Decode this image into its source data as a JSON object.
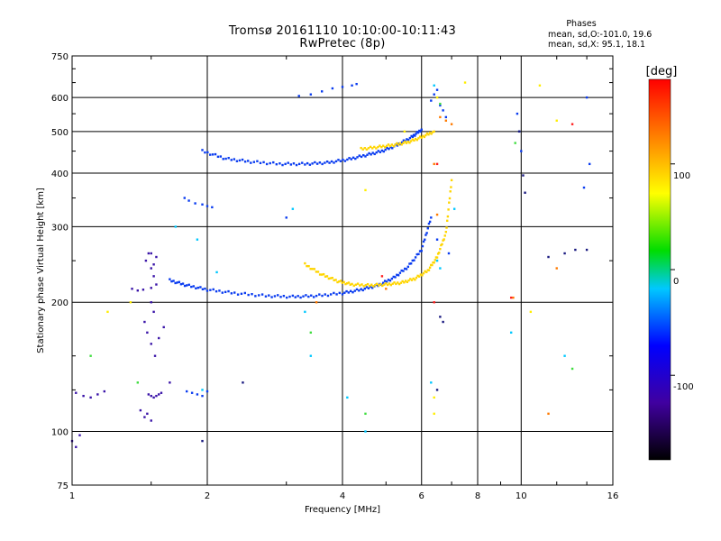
{
  "header": {
    "title_line1": "Tromsø 20161110 10:10:00-10:11:43",
    "title_line2": "RwPretec (8p)"
  },
  "stats": {
    "title": "Phases",
    "line_o": "mean, sd,O:-101.0, 19.6",
    "line_x": "mean, sd,X:  95.1, 18.1"
  },
  "chart_data": {
    "type": "scatter",
    "xlabel": "Frequency [MHz]",
    "ylabel": "Stationary phase Virtual Height [km]",
    "xscale": "log",
    "yscale": "log",
    "xlim": [
      1,
      16
    ],
    "ylim": [
      75,
      750
    ],
    "xticks": [
      1,
      2,
      4,
      6,
      8,
      10,
      16
    ],
    "yticks": [
      75,
      100,
      200,
      300,
      400,
      500,
      600,
      750
    ],
    "grid": true,
    "colorbar": {
      "label": "[deg]",
      "range": [
        -180,
        180
      ],
      "ticks": [
        100,
        0,
        -100
      ]
    },
    "series": [
      {
        "color": "#0a3cf0",
        "curve": true,
        "x": [
          1.65,
          1.8,
          2.0,
          2.3,
          2.7,
          3.1,
          3.5,
          4.0,
          4.4,
          4.8,
          5.2,
          5.6,
          6.0,
          6.3
        ],
        "y": [
          225,
          219,
          214,
          210,
          207,
          206,
          207,
          210,
          214,
          219,
          228,
          242,
          265,
          315
        ]
      },
      {
        "color": "#0a3cf0",
        "curve": true,
        "x": [
          1.95,
          2.2,
          2.5,
          2.9,
          3.3,
          3.7,
          4.1,
          4.5,
          4.9,
          5.3,
          5.7,
          6.0
        ],
        "y": [
          450,
          432,
          425,
          420,
          420,
          423,
          430,
          440,
          450,
          465,
          485,
          505
        ]
      },
      {
        "color": "#ffd500",
        "curve": true,
        "x": [
          3.3,
          3.6,
          3.9,
          4.2,
          4.6,
          5.0,
          5.4,
          5.8,
          6.2,
          6.5,
          6.8,
          7.0
        ],
        "y": [
          245,
          232,
          224,
          220,
          219,
          220,
          222,
          227,
          237,
          255,
          290,
          385
        ]
      },
      {
        "color": "#ffd500",
        "curve": true,
        "x": [
          4.4,
          4.8,
          5.2,
          5.6,
          6.0,
          6.4
        ],
        "y": [
          455,
          460,
          465,
          472,
          485,
          500
        ]
      },
      {
        "color": "#3a14a8",
        "curve": false,
        "x": [
          1.02,
          1.06,
          1.1,
          1.14,
          1.18,
          1.36,
          1.4,
          1.44,
          1.5,
          1.54,
          1.46,
          1.48,
          1.5,
          1.52,
          1.54,
          1.5,
          1.52,
          1.45,
          1.47,
          1.5,
          1.53,
          1.56,
          1.6,
          1.65,
          1.48,
          1.5,
          1.52,
          1.54,
          1.56,
          1.58,
          1.42,
          1.45,
          1.47,
          1.5,
          1.0,
          1.02,
          1.04,
          1.5,
          1.52
        ],
        "y": [
          123,
          121,
          120,
          122,
          124,
          215,
          213,
          214,
          216,
          220,
          250,
          260,
          240,
          230,
          255,
          200,
          190,
          180,
          170,
          160,
          150,
          165,
          175,
          130,
          122,
          121,
          120,
          121,
          122,
          123,
          112,
          108,
          110,
          106,
          95,
          92,
          98,
          260,
          245
        ]
      },
      {
        "color": "#0a3cf0",
        "curve": false,
        "x": [
          1.8,
          1.85,
          1.9,
          1.95,
          2.0,
          1.78,
          1.82,
          1.88,
          1.95,
          2.0,
          2.05,
          3.2,
          3.4,
          3.6,
          3.8,
          4.0,
          4.2,
          4.3,
          3.0,
          6.3,
          6.4,
          6.5,
          6.6,
          6.7,
          6.8,
          9.8,
          9.9,
          10.0,
          14.0,
          14.2,
          13.8,
          6.5,
          6.9
        ],
        "y": [
          124,
          123,
          122,
          121,
          124,
          350,
          345,
          340,
          338,
          335,
          333,
          605,
          610,
          620,
          630,
          635,
          640,
          645,
          315,
          590,
          610,
          625,
          575,
          560,
          540,
          550,
          500,
          450,
          600,
          420,
          370,
          280,
          260
        ]
      },
      {
        "color": "#00c8ff",
        "curve": false,
        "x": [
          1.95,
          3.1,
          4.5,
          6.6,
          6.3,
          7.1,
          9.5,
          12.5,
          6.4,
          1.9,
          2.1,
          1.7,
          3.3,
          3.4,
          4.1,
          6.5
        ],
        "y": [
          125,
          330,
          100,
          240,
          130,
          330,
          170,
          150,
          640,
          280,
          235,
          300,
          190,
          150,
          120,
          250
        ]
      },
      {
        "color": "#ff7a00",
        "curve": false,
        "x": [
          6.6,
          6.8,
          7.0,
          9.6,
          11.5,
          12.0,
          6.4,
          5.0,
          3.5,
          6.5
        ],
        "y": [
          540,
          530,
          520,
          205,
          110,
          240,
          420,
          215,
          200,
          320
        ]
      },
      {
        "color": "#ffee00",
        "curve": false,
        "x": [
          1.2,
          1.35,
          6.4,
          6.5,
          7.5,
          12.0,
          4.5,
          5.5,
          10.5,
          11.0,
          6.4
        ],
        "y": [
          190,
          200,
          110,
          600,
          650,
          530,
          365,
          500,
          190,
          640,
          120
        ]
      },
      {
        "color": "#40dd40",
        "curve": false,
        "x": [
          1.1,
          1.4,
          3.4,
          4.5,
          6.6,
          13.0,
          9.7
        ],
        "y": [
          150,
          130,
          170,
          110,
          580,
          140,
          470
        ]
      },
      {
        "color": "#ff2020",
        "curve": false,
        "x": [
          6.5,
          9.5,
          13.0,
          4.9,
          6.4
        ],
        "y": [
          420,
          205,
          520,
          230,
          200
        ]
      },
      {
        "color": "#1a1a80",
        "curve": false,
        "x": [
          6.6,
          6.5,
          9.9,
          10.1,
          10.2,
          14.0,
          13.2,
          11.5,
          12.5,
          1.95,
          2.4,
          6.7
        ],
        "y": [
          185,
          125,
          500,
          395,
          360,
          265,
          265,
          255,
          260,
          95,
          130,
          180
        ]
      }
    ]
  }
}
